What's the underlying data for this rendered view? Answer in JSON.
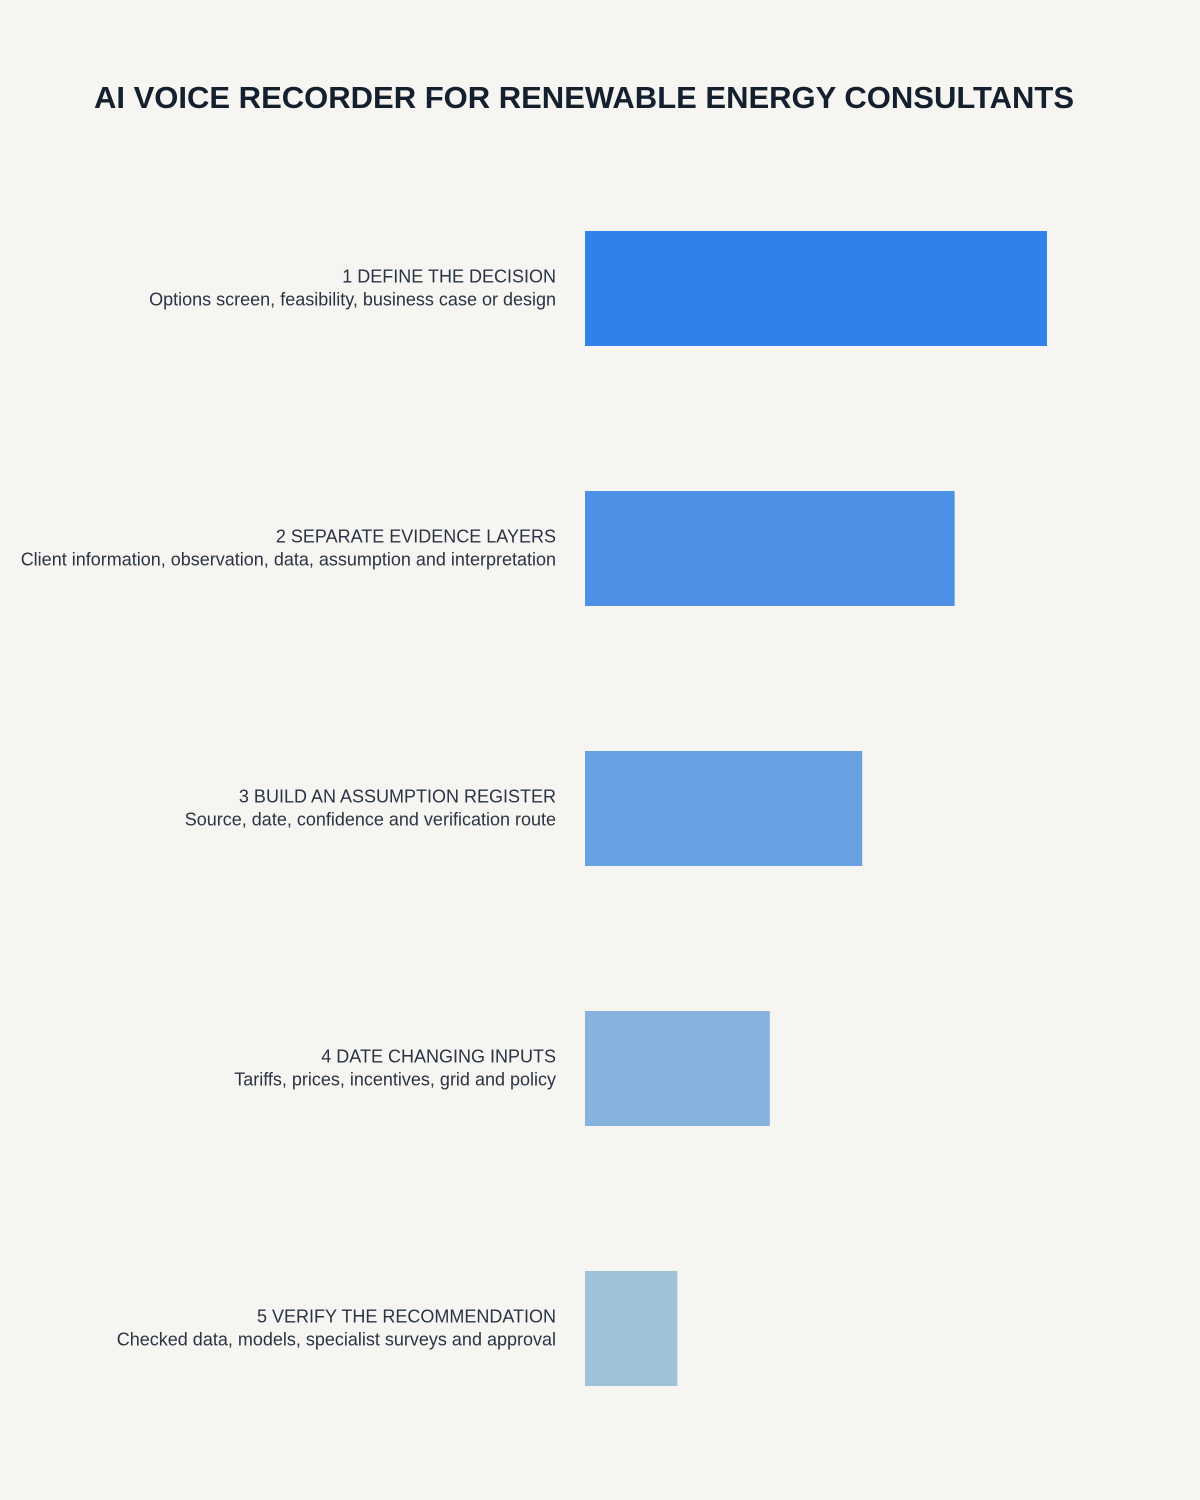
{
  "chart_data": {
    "type": "bar",
    "orientation": "horizontal",
    "title": "AI VOICE RECORDER FOR RENEWABLE ENERGY CONSULTANTS",
    "categories": [
      "1 DEFINE THE DECISION",
      "2 SEPARATE EVIDENCE LAYERS",
      "3 BUILD AN ASSUMPTION REGISTER",
      "4 DATE CHANGING INPUTS",
      "5 VERIFY THE RECOMMENDATION"
    ],
    "descriptions": [
      "Options screen, feasibility, business case or design",
      "Client information, observation, data, assumption and interpretation",
      "Source, date, confidence and verification route",
      "Tariffs, prices, incentives, grid and policy",
      "Checked data, models, specialist surveys and approval"
    ],
    "values": [
      5,
      4,
      3,
      2,
      1
    ],
    "colors": [
      "#3081ea",
      "#4d91e6",
      "#68a2e2",
      "#86b3de",
      "#a0c2d8"
    ]
  }
}
